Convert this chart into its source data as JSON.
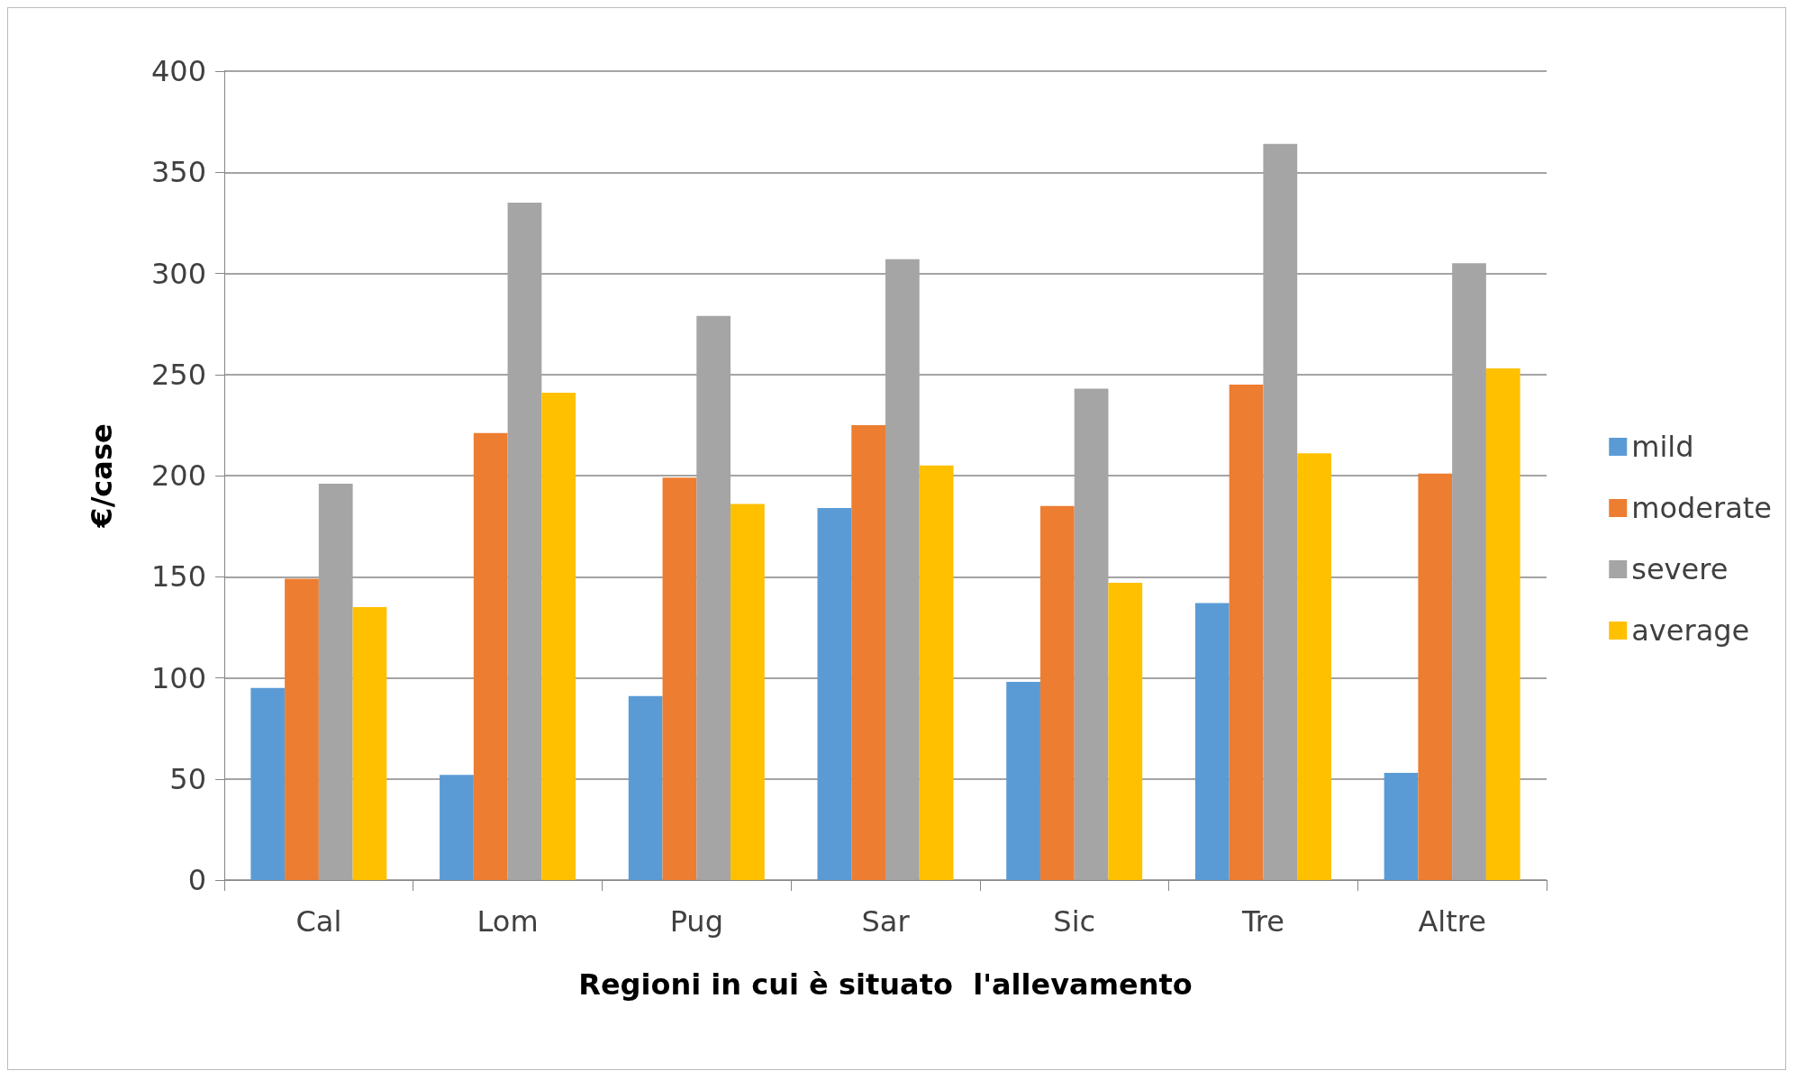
{
  "chart_data": {
    "type": "bar",
    "xlabel": "Regioni in cui è situato  l'allevamento",
    "ylabel": "€/case",
    "categories": [
      "Cal",
      "Lom",
      "Pug",
      "Sar",
      "Sic",
      "Tre",
      "Altre"
    ],
    "series": [
      {
        "name": "mild",
        "color": "#5b9bd5",
        "values": [
          95,
          52,
          91,
          184,
          98,
          137,
          53
        ]
      },
      {
        "name": "moderate",
        "color": "#ed7d31",
        "values": [
          149,
          221,
          199,
          225,
          185,
          245,
          201
        ]
      },
      {
        "name": "severe",
        "color": "#a5a5a5",
        "values": [
          196,
          335,
          279,
          307,
          243,
          364,
          305
        ]
      },
      {
        "name": "average",
        "color": "#ffc000",
        "values": [
          135,
          241,
          186,
          205,
          147,
          211,
          253
        ]
      }
    ],
    "ylim": [
      0,
      400
    ],
    "yticks": [
      0,
      50,
      100,
      150,
      200,
      250,
      300,
      350,
      400
    ],
    "grid": "y",
    "legend": "right"
  }
}
